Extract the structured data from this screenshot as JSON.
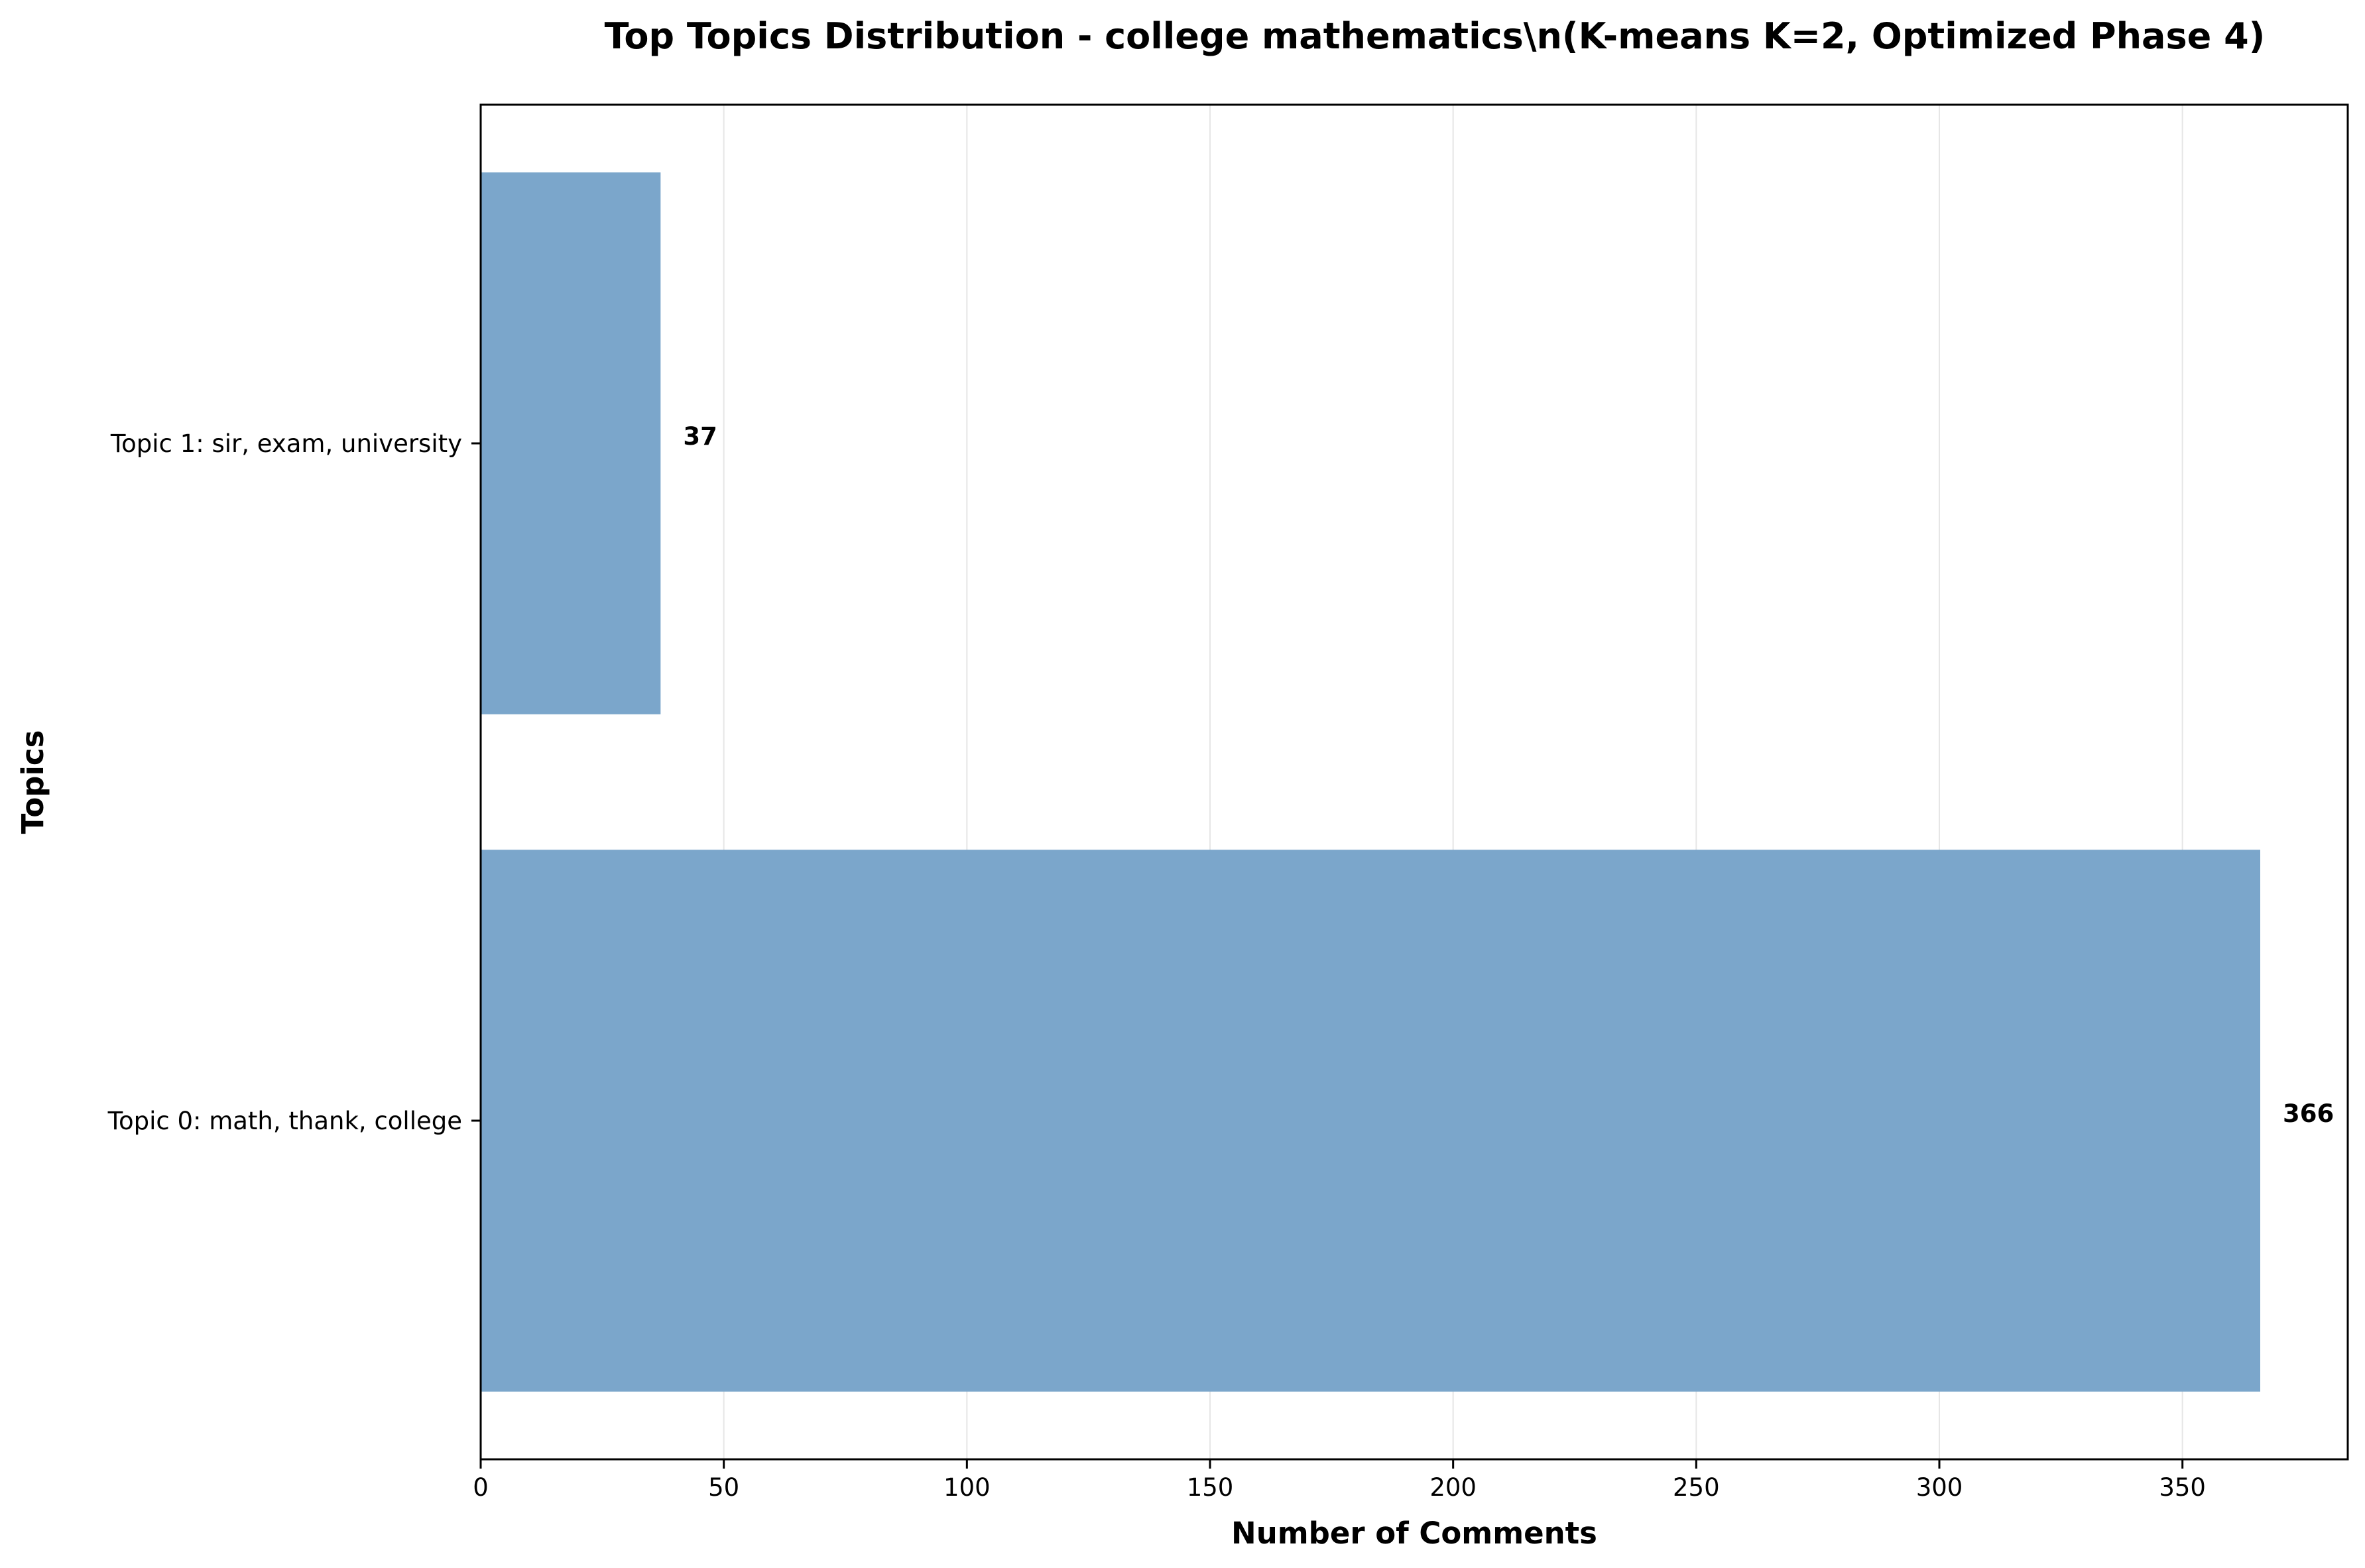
{
  "chart_data": {
    "type": "bar",
    "orientation": "horizontal",
    "title": "Top Topics Distribution - college mathematics\\n(K-means K=2, Optimized Phase 4)",
    "xlabel": "Number of Comments",
    "ylabel": "Topics",
    "categories": [
      "Topic 0: math, thank, college",
      "Topic 1: sir, exam, university"
    ],
    "values": [
      366,
      37
    ],
    "data_labels": [
      "366",
      "37"
    ],
    "xlim": [
      0,
      384
    ],
    "xticks": [
      0,
      50,
      100,
      150,
      200,
      250,
      300,
      350
    ],
    "xtick_labels": [
      "0",
      "50",
      "100",
      "150",
      "200",
      "250",
      "300",
      "350"
    ],
    "grid": "x",
    "bar_color": "#7ba6cb",
    "grid_color": "#e6e6e6"
  }
}
